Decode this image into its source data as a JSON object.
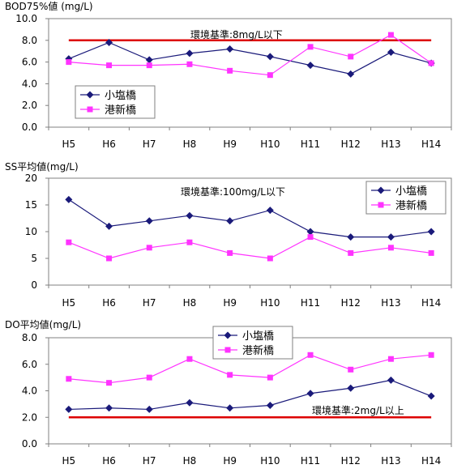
{
  "colors": {
    "shiotaka": "#1a1a7a",
    "minato": "#ff33ff",
    "standard": "#dd0000",
    "axis": "#808080",
    "text": "#000000"
  },
  "chart_data": [
    {
      "type": "line",
      "title": "BOD75%値 (mg/L)",
      "categories": [
        "H5",
        "H6",
        "H7",
        "H8",
        "H9",
        "H10",
        "H11",
        "H12",
        "H13",
        "H14"
      ],
      "ylim": [
        0,
        10
      ],
      "yticks": [
        "0.0",
        "2.0",
        "4.0",
        "6.0",
        "8.0",
        "10.0"
      ],
      "ytick_values": [
        0,
        2,
        4,
        6,
        8,
        10
      ],
      "series": [
        {
          "name": "小塩橋",
          "marker": "diamond",
          "values": [
            6.3,
            7.8,
            6.2,
            6.8,
            7.2,
            6.5,
            5.7,
            4.9,
            6.9,
            5.9
          ]
        },
        {
          "name": "港新橋",
          "marker": "square",
          "values": [
            6.0,
            5.7,
            5.7,
            5.8,
            5.2,
            4.8,
            7.4,
            6.5,
            8.5,
            5.9
          ]
        }
      ],
      "standard": {
        "value": 8,
        "label": "環境基準:8mg/L以下"
      },
      "legend": "bottom-left"
    },
    {
      "type": "line",
      "title": "SS平均値(mg/L)",
      "categories": [
        "H5",
        "H6",
        "H7",
        "H8",
        "H9",
        "H10",
        "H11",
        "H12",
        "H13",
        "H14"
      ],
      "ylim": [
        0,
        20
      ],
      "yticks": [
        "0",
        "5",
        "10",
        "15",
        "20"
      ],
      "ytick_values": [
        0,
        5,
        10,
        15,
        20
      ],
      "series": [
        {
          "name": "小塩橋",
          "marker": "diamond",
          "values": [
            16,
            11,
            12,
            13,
            12,
            14,
            10,
            9,
            9,
            10
          ]
        },
        {
          "name": "港新橋",
          "marker": "square",
          "values": [
            8,
            5,
            7,
            8,
            6,
            5,
            9,
            6,
            7,
            6
          ]
        }
      ],
      "standard": {
        "value": null,
        "label": "環境基準:100mg/L以下"
      },
      "legend": "top-right"
    },
    {
      "type": "line",
      "title": "DO平均値(mg/L)",
      "categories": [
        "H5",
        "H6",
        "H7",
        "H8",
        "H9",
        "H10",
        "H11",
        "H12",
        "H13",
        "H14"
      ],
      "ylim": [
        0,
        8
      ],
      "yticks": [
        "0.0",
        "2.0",
        "4.0",
        "6.0",
        "8.0"
      ],
      "ytick_values": [
        0,
        2,
        4,
        6,
        8
      ],
      "series": [
        {
          "name": "小塩橋",
          "marker": "diamond",
          "values": [
            2.6,
            2.7,
            2.6,
            3.1,
            2.7,
            2.9,
            3.8,
            4.2,
            4.8,
            3.6
          ]
        },
        {
          "name": "港新橋",
          "marker": "square",
          "values": [
            4.9,
            4.6,
            5.0,
            6.4,
            5.2,
            5.0,
            6.7,
            5.6,
            6.4,
            6.7
          ]
        }
      ],
      "standard": {
        "value": 2,
        "label": "環境基準:2mg/L以上"
      },
      "legend": "top-center"
    }
  ]
}
